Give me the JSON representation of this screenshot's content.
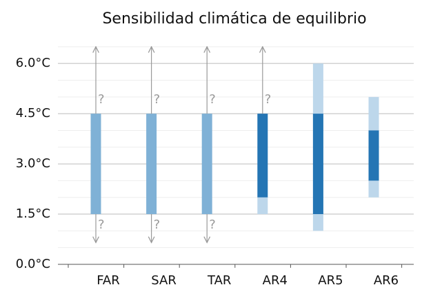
{
  "chart_data": {
    "type": "range",
    "title": "Sensibilidad climática de equilibrio",
    "categories": [
      "FAR",
      "SAR",
      "TAR",
      "AR4",
      "AR5",
      "AR6"
    ],
    "likely": {
      "low": [
        1.5,
        1.5,
        1.5,
        2,
        1.5,
        2.5
      ],
      "high": [
        4.5,
        4.5,
        4.5,
        4.5,
        4.5,
        4
      ],
      "colors": [
        "#7fb1d6",
        "#7fb1d6",
        "#7fb1d6",
        "#2475b4",
        "#2475b4",
        "#2475b4"
      ]
    },
    "very_likely": {
      "low": [
        null,
        null,
        null,
        1.5,
        1,
        2
      ],
      "high": [
        null,
        null,
        null,
        2,
        6,
        5
      ],
      "color": "#bdd7eb"
    },
    "arrow_up": [
      6.5,
      6.5,
      6.5,
      6.5,
      null,
      null
    ],
    "arrow_down": [
      0.65,
      0.65,
      0.65,
      null,
      null,
      null
    ],
    "unknown_mark": "?",
    "ylim": [
      0,
      6.6
    ],
    "yticks": [
      {
        "value": 0,
        "label": "0.0°C"
      },
      {
        "value": 1.5,
        "label": "1.5°C"
      },
      {
        "value": 3,
        "label": "3.0°C"
      },
      {
        "value": 4.5,
        "label": "4.5°C"
      },
      {
        "value": 6,
        "label": "6.0°C"
      }
    ],
    "minor_yticks": [
      0.5,
      1,
      2,
      2.5,
      3.5,
      4,
      5,
      5.5,
      6.5
    ],
    "grid": true
  }
}
